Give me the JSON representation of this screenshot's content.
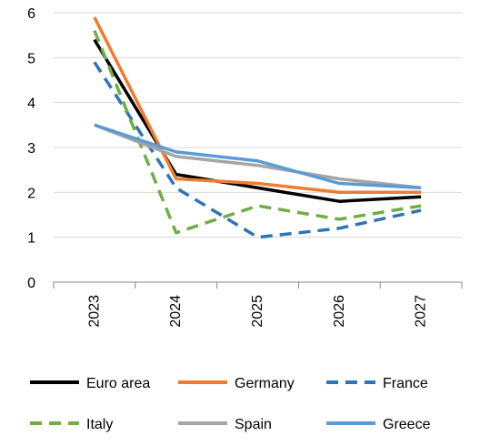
{
  "chart_data": {
    "type": "line",
    "title": "",
    "xlabel": "",
    "ylabel": "",
    "categories": [
      "2023",
      "2024",
      "2025",
      "2026",
      "2027"
    ],
    "ylim": [
      0,
      6
    ],
    "yticks": [
      "0",
      "1",
      "2",
      "3",
      "4",
      "5",
      "6"
    ],
    "grid": true,
    "legend_position": "bottom",
    "series": [
      {
        "name": "Euro area",
        "color": "#000000",
        "dash": "solid",
        "values": [
          5.4,
          2.4,
          2.1,
          1.8,
          1.9
        ]
      },
      {
        "name": "Germany",
        "color": "#ED7D31",
        "dash": "solid",
        "values": [
          5.9,
          2.3,
          2.2,
          2.0,
          2.0
        ]
      },
      {
        "name": "France",
        "color": "#2E75B6",
        "dash": "dashed",
        "values": [
          4.9,
          2.1,
          1.0,
          1.2,
          1.6
        ]
      },
      {
        "name": "Italy",
        "color": "#70AD47",
        "dash": "dashed",
        "values": [
          5.6,
          1.1,
          1.7,
          1.4,
          1.7
        ]
      },
      {
        "name": "Spain",
        "color": "#A5A5A5",
        "dash": "solid",
        "values": [
          3.5,
          2.8,
          2.6,
          2.3,
          2.1
        ]
      },
      {
        "name": "Greece",
        "color": "#5B9BD5",
        "dash": "solid",
        "values": [
          3.5,
          2.9,
          2.7,
          2.2,
          2.1
        ]
      }
    ]
  }
}
